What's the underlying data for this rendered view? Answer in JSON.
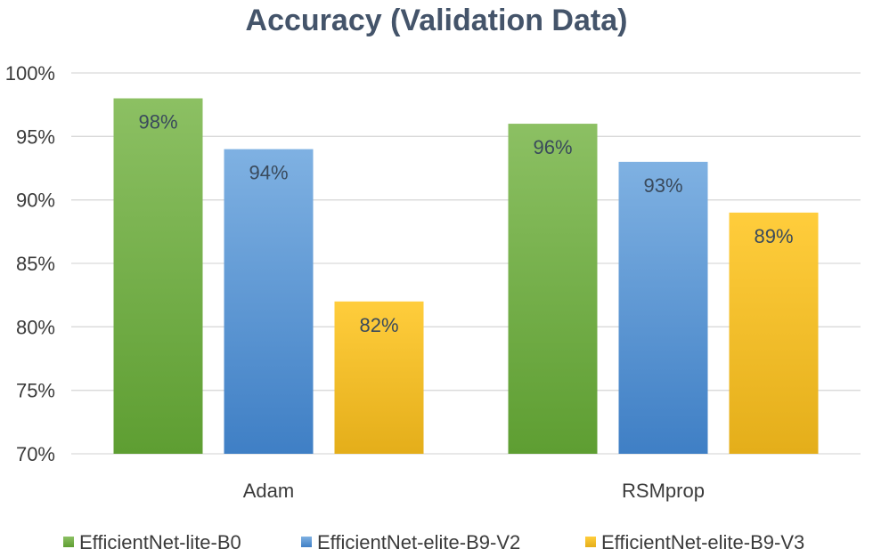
{
  "chart_data": {
    "type": "bar",
    "title": "Accuracy (Validation Data)",
    "xlabel": "",
    "ylabel": "",
    "categories": [
      "Adam",
      "RSMprop"
    ],
    "ylim": [
      70,
      100
    ],
    "yticks": [
      70,
      75,
      80,
      85,
      90,
      95,
      100
    ],
    "ytick_labels": [
      "70%",
      "75%",
      "80%",
      "85%",
      "90%",
      "95%",
      "100%"
    ],
    "grid": true,
    "legend_position": "bottom",
    "series": [
      {
        "name": "EfficientNet-lite-B0",
        "values": [
          98,
          96
        ],
        "labels": [
          "98%",
          "96%"
        ],
        "color_top": "#8cc063",
        "color_bottom": "#5e9e32"
      },
      {
        "name": "EfficientNet-elite-B9-V2",
        "values": [
          94,
          93
        ],
        "labels": [
          "94%",
          "93%"
        ],
        "color_top": "#7fb1e2",
        "color_bottom": "#3f7fc5"
      },
      {
        "name": "EfficientNet-elite-B9-V3",
        "values": [
          82,
          89
        ],
        "labels": [
          "82%",
          "89%"
        ],
        "color_top": "#ffcd3c",
        "color_bottom": "#e4ae1a"
      }
    ]
  }
}
